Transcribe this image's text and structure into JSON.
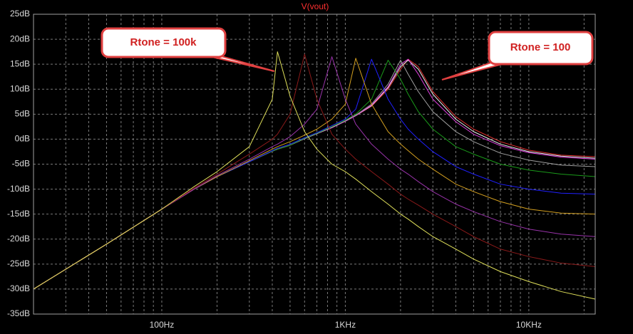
{
  "chart_data": {
    "type": "line",
    "title": "V(vout)",
    "x": [
      20,
      50,
      100,
      150,
      200,
      300,
      400,
      427,
      500,
      600,
      700,
      845,
      1000,
      1140,
      1390,
      1710,
      2000,
      2200,
      2500,
      3000,
      4000,
      5000,
      7000,
      10000,
      15000,
      23000
    ],
    "xscale": "log",
    "xlim": [
      20,
      23000
    ],
    "xticks": [
      {
        "value": 100,
        "label": "100Hz"
      },
      {
        "value": 1000,
        "label": "1KHz"
      },
      {
        "value": 10000,
        "label": "10KHz"
      }
    ],
    "x_minor_ticks": [
      30,
      40,
      50,
      60,
      70,
      80,
      90,
      200,
      300,
      400,
      500,
      600,
      700,
      800,
      900,
      2000,
      3000,
      4000,
      5000,
      6000,
      7000,
      8000,
      9000,
      20000
    ],
    "ylim": [
      -35,
      25
    ],
    "yticks": [
      {
        "value": -35,
        "label": "-35dB"
      },
      {
        "value": -30,
        "label": "-30dB"
      },
      {
        "value": -25,
        "label": "-25dB"
      },
      {
        "value": -20,
        "label": "-20dB"
      },
      {
        "value": -15,
        "label": "-15dB"
      },
      {
        "value": -10,
        "label": "-10dB"
      },
      {
        "value": -5,
        "label": "-5dB"
      },
      {
        "value": 0,
        "label": "0dB"
      },
      {
        "value": 5,
        "label": "5dB"
      },
      {
        "value": 10,
        "label": "10dB"
      },
      {
        "value": 15,
        "label": "15dB"
      },
      {
        "value": 20,
        "label": "20dB"
      },
      {
        "value": 25,
        "label": "25dB"
      }
    ],
    "grid": true,
    "series": [
      {
        "color": "#e0e05a",
        "values": [
          -30,
          -21,
          -14,
          -9.5,
          -6.5,
          -1.5,
          8,
          17.5,
          8.6,
          1.5,
          -2,
          -5,
          -6.5,
          -8,
          -10.5,
          -13,
          -15,
          -16,
          -17.5,
          -19.5,
          -22,
          -24,
          -26.5,
          -28.5,
          -30.5,
          -32
        ]
      },
      {
        "color": "#8b1a1a",
        "values": [
          -30,
          -21,
          -14,
          -9.8,
          -7,
          -3,
          0,
          1,
          5,
          17,
          8,
          1,
          -2,
          -4,
          -6.5,
          -9,
          -11,
          -12,
          -13.2,
          -15,
          -17.5,
          -19.5,
          -22,
          -23.5,
          -24.8,
          -25.5
        ]
      },
      {
        "color": "#9933aa",
        "values": [
          -30,
          -21,
          -14,
          -10,
          -7.3,
          -4,
          -1.5,
          -1,
          0.5,
          3,
          6,
          16.5,
          8,
          3,
          -1,
          -4,
          -6,
          -7,
          -8.5,
          -10.5,
          -13,
          -14.5,
          -16.5,
          -18,
          -19,
          -19.5
        ]
      },
      {
        "color": "#d4a020",
        "values": [
          -30,
          -21,
          -14,
          -10,
          -7.5,
          -4.3,
          -2,
          -1.5,
          -0.5,
          0.8,
          2,
          4,
          7,
          16.2,
          7,
          1.5,
          -1,
          -2.3,
          -4,
          -6,
          -9,
          -10.5,
          -12.5,
          -14,
          -14.8,
          -15
        ]
      },
      {
        "color": "#2020ff",
        "values": [
          -30,
          -21,
          -14,
          -10,
          -7.5,
          -4.5,
          -2.3,
          -1.8,
          -1,
          0.3,
          1.3,
          2.7,
          4,
          6,
          16,
          8,
          4,
          2,
          0,
          -2.5,
          -5.5,
          -7,
          -9,
          -10,
          -10.8,
          -11
        ]
      },
      {
        "color": "#1a9a1a",
        "values": [
          -30,
          -21,
          -14,
          -10,
          -7.5,
          -4.5,
          -2.4,
          -2,
          -1.2,
          0.2,
          1.2,
          2.5,
          3.8,
          5,
          8,
          15.8,
          12,
          9,
          5.5,
          2,
          -1.5,
          -3,
          -5,
          -6.2,
          -7,
          -7.5
        ]
      },
      {
        "color": "#a0a0a0",
        "values": [
          -30,
          -21,
          -14,
          -10,
          -7.5,
          -4.5,
          -2.4,
          -2,
          -1.2,
          0.1,
          1.1,
          2.4,
          3.7,
          4.8,
          7,
          11,
          15.8,
          13,
          9.5,
          5.5,
          1.5,
          -0.5,
          -2.8,
          -4.2,
          -5.2,
          -5.5
        ]
      },
      {
        "color": "#e040e0",
        "values": [
          -30,
          -21,
          -14,
          -10,
          -7.5,
          -4.5,
          -2.4,
          -2,
          -1.2,
          0.1,
          1.1,
          2.3,
          3.6,
          4.7,
          6.8,
          10.5,
          15,
          16,
          13,
          8,
          3.5,
          1,
          -1.3,
          -2.7,
          -3.6,
          -4
        ]
      },
      {
        "color": "#f0f0f0",
        "values": [
          -30,
          -21,
          -14,
          -10,
          -7.5,
          -4.5,
          -2.4,
          -2,
          -1.2,
          0.1,
          1.1,
          2.3,
          3.6,
          4.7,
          6.7,
          10.3,
          14.5,
          15.8,
          14,
          9,
          4,
          1.5,
          -1,
          -2.5,
          -3.4,
          -3.8
        ]
      },
      {
        "color": "#e03030",
        "values": [
          -30,
          -21,
          -14,
          -10,
          -7.5,
          -4.5,
          -2.4,
          -2,
          -1.2,
          0.1,
          1.1,
          2.3,
          3.6,
          4.7,
          6.6,
          10,
          14,
          16,
          14.5,
          9.5,
          4.5,
          2,
          -0.5,
          -2.2,
          -3.2,
          -3.5
        ]
      }
    ],
    "annotations": [
      {
        "text": "Rtone = 100k"
      },
      {
        "text": "Rtone = 100"
      }
    ]
  }
}
